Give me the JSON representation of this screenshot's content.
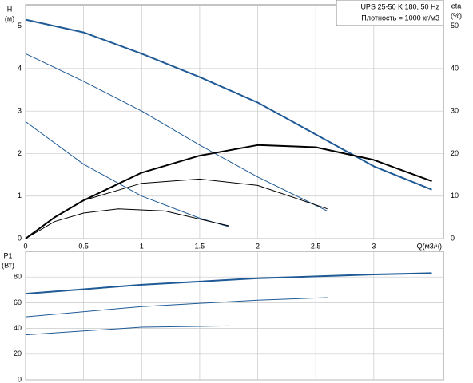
{
  "chart_data": [
    {
      "type": "line",
      "legend_lines": [
        "UPS 25-50 K 180, 50 Hz",
        "Плотность = 1000 кг/м3"
      ],
      "ylabel": [
        "H",
        "(м)"
      ],
      "y2label": [
        "eta",
        "(%)"
      ],
      "xlabel": "Q(м3/ч)",
      "xlim": [
        0,
        3.6
      ],
      "xticks": [
        0,
        0.5,
        1,
        1.5,
        2,
        2.5,
        3
      ],
      "ylim": [
        0,
        5.5
      ],
      "yticks": [
        0,
        1,
        2,
        3,
        4,
        5
      ],
      "y2lim": [
        0,
        55
      ],
      "y2ticks": [
        0,
        10,
        20,
        30,
        40,
        50
      ],
      "grid": true,
      "series": [
        {
          "color": "#1f5a96",
          "width": 2,
          "x": [
            0,
            0.5,
            1,
            1.5,
            2,
            2.5,
            3,
            3.5
          ],
          "values": [
            5.15,
            4.85,
            4.35,
            3.8,
            3.2,
            2.45,
            1.7,
            1.15
          ]
        },
        {
          "color": "#1f5a96",
          "width": 1,
          "x": [
            0,
            0.5,
            1,
            1.5,
            2,
            2.6
          ],
          "values": [
            4.35,
            3.7,
            3.0,
            2.2,
            1.45,
            0.65
          ]
        },
        {
          "color": "#1f5a96",
          "width": 1,
          "x": [
            0,
            0.5,
            1,
            1.5,
            1.75
          ],
          "values": [
            2.75,
            1.75,
            1.0,
            0.48,
            0.28
          ]
        },
        {
          "color": "#000000",
          "width": 2,
          "axis": "y2",
          "x": [
            0,
            0.25,
            0.5,
            1,
            1.5,
            2,
            2.5,
            3,
            3.5
          ],
          "values": [
            0,
            5,
            9,
            15.5,
            19.5,
            22,
            21.5,
            18.5,
            13.5
          ]
        },
        {
          "color": "#000000",
          "width": 1,
          "axis": "y2",
          "x": [
            0,
            0.25,
            0.5,
            1,
            1.5,
            2,
            2.6
          ],
          "values": [
            0,
            5,
            9,
            13,
            14,
            12.5,
            7
          ]
        },
        {
          "color": "#000000",
          "width": 1,
          "axis": "y2",
          "x": [
            0,
            0.25,
            0.5,
            0.8,
            1.2,
            1.75
          ],
          "values": [
            0,
            4,
            6,
            7,
            6.5,
            3
          ]
        }
      ]
    },
    {
      "type": "line",
      "ylabel": [
        "P1",
        "(Вт)"
      ],
      "xlim": [
        0,
        3.6
      ],
      "xticks": [
        0,
        0.5,
        1,
        1.5,
        2,
        2.5,
        3
      ],
      "ylim": [
        0,
        100
      ],
      "yticks": [
        0,
        20,
        40,
        60,
        80
      ],
      "grid": true,
      "series": [
        {
          "color": "#1f5a96",
          "width": 2,
          "x": [
            0,
            1,
            2,
            3,
            3.5
          ],
          "values": [
            67,
            74,
            79,
            82,
            83
          ]
        },
        {
          "color": "#1f5a96",
          "width": 1,
          "x": [
            0,
            1,
            2,
            2.6
          ],
          "values": [
            49,
            57,
            62,
            64
          ]
        },
        {
          "color": "#1f5a96",
          "width": 1,
          "x": [
            0,
            0.5,
            1,
            1.75
          ],
          "values": [
            35,
            38,
            41,
            42
          ]
        }
      ]
    }
  ]
}
